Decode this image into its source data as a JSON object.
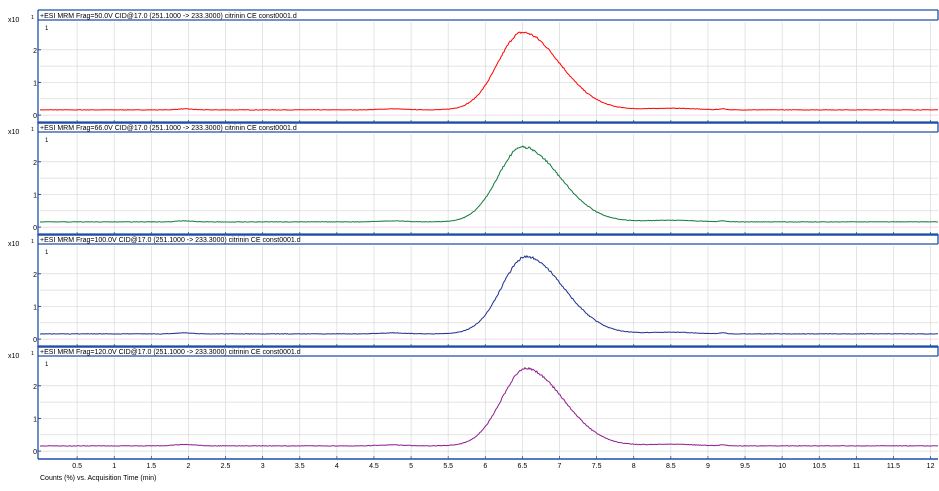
{
  "footer": {
    "caption": "Counts (%) vs. Acquisition Time (min)"
  },
  "axis": {
    "multiplier_base": "x10",
    "multiplier_exp": "1",
    "y_ticks": [
      "0",
      "1",
      "2"
    ],
    "y_top_label": "1",
    "x_ticks": [
      "0.5",
      "1",
      "1.5",
      "2",
      "2.5",
      "3",
      "3.5",
      "4",
      "4.5",
      "5",
      "5.5",
      "6",
      "6.5",
      "7",
      "7.5",
      "8",
      "8.5",
      "9",
      "9.5",
      "10",
      "10.5",
      "11",
      "11.5",
      "12"
    ]
  },
  "colors": {
    "frame": "#1f4fa8",
    "grid": "#d9d9d9"
  },
  "chart_data": [
    {
      "type": "line",
      "title": "+ESI MRM Frag=50.0V CID@17.0 (251.1000 -> 233.3000) citrinin CE const0001.d",
      "color": "#ff0000",
      "xlim": [
        0,
        12.1
      ],
      "ylim": [
        -0.15,
        2.85
      ],
      "baseline": 0.16,
      "bumps": [
        [
          1.95,
          0.03,
          0.15
        ],
        [
          4.75,
          0.03,
          0.25
        ],
        [
          8.5,
          0.05,
          0.45
        ],
        [
          9.2,
          0.03,
          0.06
        ]
      ],
      "peak": {
        "x": 6.5,
        "y": 2.53,
        "sigma_left": 0.33,
        "sigma_right": 0.5
      }
    },
    {
      "type": "line",
      "title": "+ESI MRM Frag=66.0V CID@17.0 (251.1000 -> 233.3000) citrinin CE const0001.d",
      "color": "#117a3c",
      "xlim": [
        0,
        12.1
      ],
      "ylim": [
        -0.15,
        2.85
      ],
      "baseline": 0.16,
      "bumps": [
        [
          1.95,
          0.03,
          0.15
        ],
        [
          4.75,
          0.03,
          0.25
        ],
        [
          8.5,
          0.05,
          0.45
        ],
        [
          9.2,
          0.03,
          0.06
        ]
      ],
      "peak": {
        "x": 6.5,
        "y": 2.45,
        "sigma_left": 0.33,
        "sigma_right": 0.5
      }
    },
    {
      "type": "line",
      "title": "+ESI MRM Frag=100.0V CID@17.0 (251.1000 -> 233.3000) citrinin CE const0001.d",
      "color": "#1d2f8f",
      "xlim": [
        0,
        12.1
      ],
      "ylim": [
        -0.15,
        2.85
      ],
      "baseline": 0.16,
      "bumps": [
        [
          1.95,
          0.03,
          0.15
        ],
        [
          4.75,
          0.03,
          0.25
        ],
        [
          8.5,
          0.05,
          0.45
        ],
        [
          9.2,
          0.03,
          0.06
        ]
      ],
      "peak": {
        "x": 6.55,
        "y": 2.52,
        "sigma_left": 0.33,
        "sigma_right": 0.5
      }
    },
    {
      "type": "line",
      "title": "+ESI MRM Frag=120.0V CID@17.0 (251.1000 -> 233.3000) citrinin CE const0001.d",
      "color": "#8e1f8e",
      "xlim": [
        0,
        12.1
      ],
      "ylim": [
        -0.15,
        2.85
      ],
      "baseline": 0.16,
      "bumps": [
        [
          1.95,
          0.04,
          0.2
        ],
        [
          4.75,
          0.03,
          0.25
        ],
        [
          8.5,
          0.05,
          0.45
        ],
        [
          9.2,
          0.03,
          0.06
        ]
      ],
      "peak": {
        "x": 6.55,
        "y": 2.52,
        "sigma_left": 0.33,
        "sigma_right": 0.5
      }
    }
  ]
}
